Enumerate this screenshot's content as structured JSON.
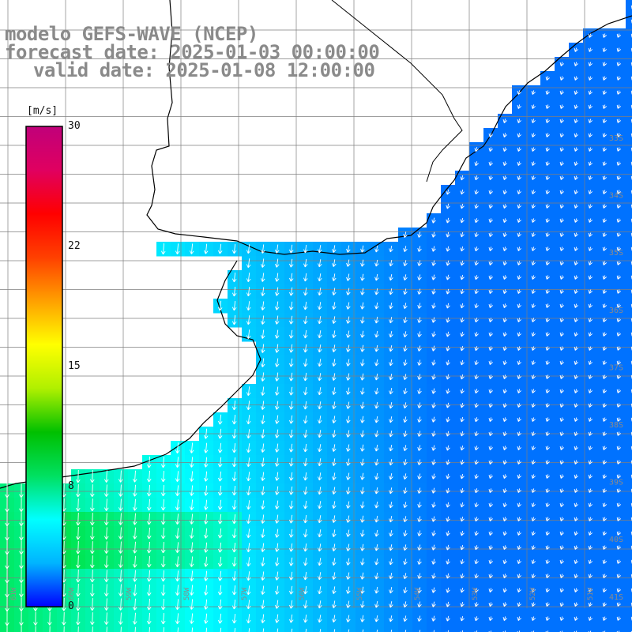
{
  "title": {
    "line1": "modelo GEFS-WAVE (NCEP)",
    "line2": "forecast date: 2025-01-03 00:00:00",
    "line3": "valid date: 2025-01-08 12:00:00"
  },
  "colorbar": {
    "unit": "[m/s]",
    "ticks": [
      "30",
      "22",
      "15",
      "8",
      "0"
    ],
    "colors": [
      "#0000ff",
      "#00b4ff",
      "#00ffff",
      "#00e060",
      "#00c000",
      "#b0f000",
      "#ffff00",
      "#ffa000",
      "#ff4000",
      "#ff0000",
      "#e00060",
      "#c0007a"
    ]
  },
  "latitude_labels": [
    "33S",
    "34S",
    "35S",
    "36S",
    "37S",
    "38S",
    "39S",
    "40S",
    "41S"
  ],
  "longitude_labels": [
    "61W",
    "60W",
    "59W",
    "58W",
    "57W",
    "56W",
    "55W",
    "54W",
    "53W",
    "52W",
    "51W"
  ],
  "colors": {
    "land": "#ffffff",
    "coast": "#000000",
    "grid": "#7f7f7f",
    "title": "#8a8a8a",
    "arrow": "#ffffff"
  }
}
